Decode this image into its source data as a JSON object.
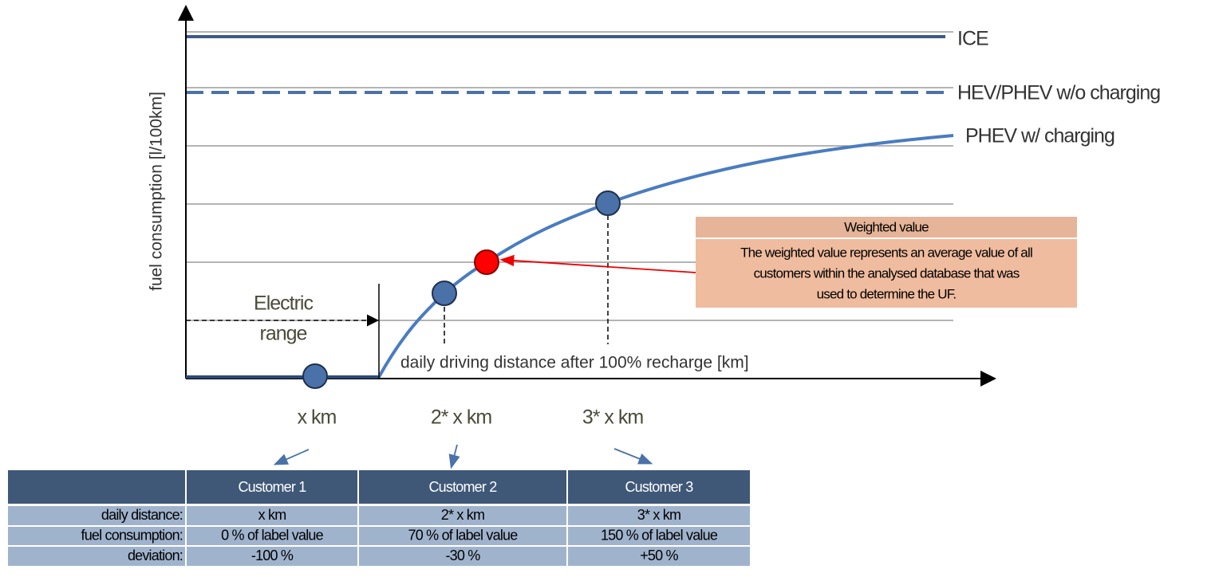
{
  "y_axis_label": "fuel consumption [l/100km]",
  "x_axis_label": "daily driving distance after 100% recharge [km]",
  "lines": [
    {
      "label": "ICE"
    },
    {
      "label": "HEV/PHEV w/o charging"
    },
    {
      "label": "PHEV w/ charging"
    }
  ],
  "electric_range": [
    "Electric",
    "range"
  ],
  "x_labels": [
    "x km",
    "2* x km",
    "3* x km"
  ],
  "callout": {
    "title": "Weighted value",
    "text": [
      "The weighted value represents an average value of all",
      "customers within the analysed database that was",
      "used to determine the UF."
    ]
  },
  "table": {
    "columns": [
      "Customer 1",
      "Customer 2",
      "Customer 3"
    ],
    "rows": [
      {
        "label": "daily distance:",
        "cells": [
          "x km",
          "2* x km",
          "3* x km"
        ]
      },
      {
        "label": "fuel consumption:",
        "cells": [
          "0 % of label value",
          "70 % of label value",
          "150 % of label value"
        ]
      },
      {
        "label": "deviation:",
        "cells": [
          "-100 %",
          "-30 %",
          "+50 %"
        ]
      }
    ]
  }
}
